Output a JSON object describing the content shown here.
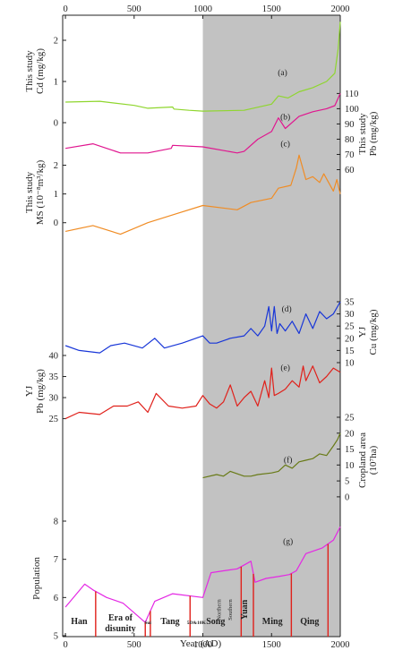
{
  "x_axis": {
    "xlabel": "Year (AD)",
    "ticks": [
      0,
      500,
      1000,
      1500,
      2000
    ],
    "tick_labels": [
      "0",
      "500",
      "1000",
      "1500",
      "2000"
    ],
    "xlim": [
      -20,
      2000
    ],
    "shaded_from_year": 1000,
    "shade_color": "#c2c2c2"
  },
  "chart_data": [
    {
      "id": "a",
      "type": "line",
      "panel_label": "(a)",
      "color": "#8fd62e",
      "ylabel_lines": [
        "This study",
        "Cd (mg/kg)"
      ],
      "ylabel_side": "left",
      "ylim": [
        0,
        2.5
      ],
      "y_ticks": [
        0,
        1,
        2
      ],
      "y_tick_labels": [
        "0",
        "1",
        "2"
      ],
      "x": [
        0,
        250,
        500,
        600,
        780,
        790,
        900,
        1000,
        1300,
        1500,
        1550,
        1620,
        1700,
        1800,
        1900,
        1960,
        1985,
        2000
      ],
      "y": [
        0.5,
        0.52,
        0.42,
        0.35,
        0.38,
        0.33,
        0.3,
        0.28,
        0.3,
        0.45,
        0.65,
        0.6,
        0.75,
        0.85,
        1.0,
        1.2,
        1.8,
        2.45
      ]
    },
    {
      "id": "b",
      "type": "line",
      "panel_label": "(b)",
      "color": "#e0168f",
      "ylabel_lines": [
        "This study",
        "Pb (mg/kg)"
      ],
      "ylabel_side": "right",
      "ylim": [
        55,
        112
      ],
      "y_ticks": [
        60,
        70,
        80,
        90,
        100,
        110
      ],
      "y_tick_labels": [
        "60",
        "70",
        "80",
        "90",
        "100",
        "110"
      ],
      "x": [
        0,
        200,
        300,
        400,
        600,
        770,
        780,
        1000,
        1250,
        1300,
        1400,
        1500,
        1550,
        1600,
        1700,
        1800,
        1900,
        1960,
        2000
      ],
      "y": [
        74,
        77,
        74,
        71,
        71,
        74,
        76,
        75,
        71,
        72,
        80,
        85,
        94,
        87,
        95,
        98,
        100,
        102,
        110
      ]
    },
    {
      "id": "c",
      "type": "line",
      "panel_label": "(c)",
      "color": "#f08c24",
      "ylabel_lines": [
        "This study",
        "MS (10⁻⁸m³/kg)"
      ],
      "ylabel_side": "left",
      "ylim": [
        -0.6,
        2.7
      ],
      "y_ticks": [
        0,
        1,
        2
      ],
      "y_tick_labels": [
        "0",
        "1",
        "2"
      ],
      "x": [
        0,
        200,
        400,
        600,
        800,
        1000,
        1250,
        1350,
        1500,
        1550,
        1640,
        1680,
        1700,
        1750,
        1800,
        1850,
        1880,
        1950,
        1975,
        2000
      ],
      "y": [
        -0.3,
        -0.1,
        -0.4,
        0.0,
        0.3,
        0.6,
        0.45,
        0.7,
        0.85,
        1.2,
        1.3,
        1.9,
        2.35,
        1.5,
        1.6,
        1.4,
        1.7,
        1.1,
        1.5,
        1.0
      ]
    },
    {
      "id": "d",
      "type": "line",
      "panel_label": "(d)",
      "color": "#1836d8",
      "ylabel_lines": [
        "YJ",
        "Cu (mg/kg)"
      ],
      "ylabel_side": "right",
      "ylim": [
        10,
        35
      ],
      "y_ticks": [
        10,
        15,
        20,
        25,
        30,
        35
      ],
      "y_tick_labels": [
        "10",
        "15",
        "20",
        "25",
        "30",
        "35"
      ],
      "x": [
        0,
        100,
        250,
        330,
        430,
        560,
        650,
        720,
        850,
        1000,
        1050,
        1100,
        1200,
        1300,
        1350,
        1400,
        1450,
        1480,
        1500,
        1520,
        1540,
        1560,
        1600,
        1650,
        1700,
        1750,
        1800,
        1850,
        1900,
        1950,
        2000
      ],
      "y": [
        17,
        15,
        14,
        17,
        18,
        16,
        20,
        16,
        18,
        21,
        18,
        18,
        20,
        21,
        24,
        21,
        25,
        33,
        23,
        33,
        22,
        26,
        23,
        27,
        22,
        30,
        24,
        31,
        28,
        30,
        35
      ]
    },
    {
      "id": "e",
      "type": "line",
      "panel_label": "(e)",
      "color": "#e0201a",
      "ylabel_lines": [
        "YJ",
        "Pb (mg/kg)"
      ],
      "ylabel_side": "left",
      "ylim": [
        23,
        40
      ],
      "y_ticks": [
        25,
        30,
        35,
        40
      ],
      "y_tick_labels": [
        "25",
        "30",
        "35",
        "40"
      ],
      "x": [
        0,
        100,
        250,
        350,
        450,
        530,
        600,
        660,
        750,
        850,
        950,
        1000,
        1050,
        1100,
        1150,
        1200,
        1250,
        1300,
        1350,
        1400,
        1450,
        1480,
        1500,
        1520,
        1550,
        1600,
        1650,
        1700,
        1730,
        1750,
        1800,
        1850,
        1900,
        1950,
        2000
      ],
      "y": [
        25,
        26.5,
        26,
        28,
        28,
        29,
        26.5,
        31,
        28,
        27.5,
        28,
        30.5,
        28.5,
        27.5,
        29,
        33,
        28,
        30,
        31.5,
        28,
        34,
        30,
        37,
        30.5,
        31,
        32,
        34,
        32.5,
        37.5,
        34,
        37.5,
        33.5,
        35,
        37,
        36
      ]
    },
    {
      "id": "f",
      "type": "line",
      "panel_label": "(f)",
      "color": "#687a16",
      "ylabel_lines": [
        "Cropland area",
        "(10⁷ha)"
      ],
      "ylabel_side": "right",
      "ylim": [
        -2,
        25
      ],
      "y_ticks": [
        0,
        5,
        10,
        15,
        20,
        25
      ],
      "y_tick_labels": [
        "0",
        "5",
        "10",
        "15",
        "20",
        "25"
      ],
      "x": [
        1000,
        1100,
        1150,
        1200,
        1300,
        1350,
        1400,
        1500,
        1550,
        1600,
        1650,
        1700,
        1750,
        1800,
        1850,
        1900,
        1950,
        1980,
        2000
      ],
      "y": [
        6,
        7,
        6.5,
        8,
        6.5,
        6.5,
        7,
        7.5,
        8,
        10,
        9,
        11,
        11.5,
        12,
        13.5,
        13,
        16,
        18,
        20
      ]
    },
    {
      "id": "g",
      "type": "line",
      "panel_label": "(g)",
      "color": "#e428e4",
      "ylabel_lines": [
        "Population"
      ],
      "ylabel_side": "left",
      "ylim": [
        5,
        8
      ],
      "y_ticks": [
        5,
        6,
        7,
        8
      ],
      "y_tick_labels": [
        "5",
        "6",
        "7",
        "8"
      ],
      "x": [
        0,
        140,
        200,
        300,
        420,
        580,
        650,
        780,
        1000,
        1060,
        1150,
        1250,
        1350,
        1380,
        1460,
        1550,
        1630,
        1680,
        1750,
        1870,
        1950,
        2000
      ],
      "y": [
        5.75,
        6.35,
        6.2,
        6.0,
        5.85,
        5.35,
        5.9,
        6.1,
        6.0,
        6.65,
        6.7,
        6.75,
        6.95,
        6.4,
        6.5,
        6.55,
        6.6,
        6.7,
        7.15,
        7.3,
        7.5,
        7.85
      ]
    }
  ],
  "dynasties": {
    "line_color": "#e0201a",
    "boundaries": [
      220,
      581,
      618,
      907,
      1279,
      1368,
      1644,
      1911
    ],
    "labels": [
      {
        "text": "Han",
        "year": 100,
        "style": "era"
      },
      {
        "text": "Era of",
        "year": 400,
        "style": "era",
        "row": 1
      },
      {
        "text": "disunity",
        "year": 400,
        "style": "era",
        "row": 2
      },
      {
        "text": "Sui",
        "year": 600,
        "style": "era-small"
      },
      {
        "text": "Tang",
        "year": 762,
        "style": "era"
      },
      {
        "text": "5D&10K",
        "year": 953,
        "style": "era-small"
      },
      {
        "text": "Song",
        "year": 1093,
        "style": "era"
      },
      {
        "text": "Northern",
        "year": 1130,
        "style": "sub",
        "vertical": true
      },
      {
        "text": "Southern",
        "year": 1210,
        "style": "sub",
        "vertical": true
      },
      {
        "text": "Yuan",
        "year": 1323,
        "style": "era",
        "vertical": true
      },
      {
        "text": "Ming",
        "year": 1506,
        "style": "era"
      },
      {
        "text": "Qing",
        "year": 1777,
        "style": "era"
      }
    ]
  }
}
